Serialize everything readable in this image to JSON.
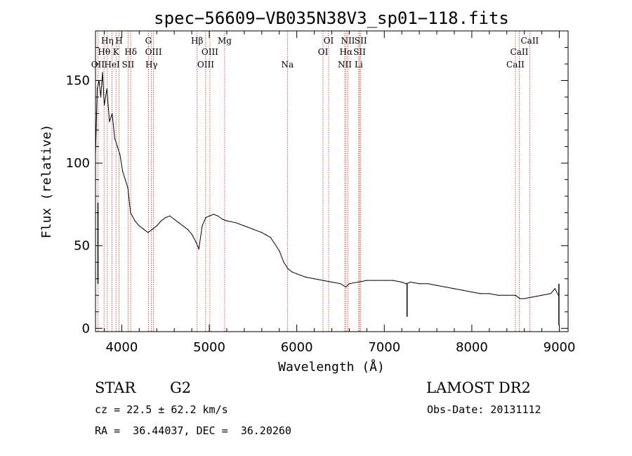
{
  "chart_data": {
    "type": "line",
    "title": "spec−56609−VB035N38V3_sp01−118.fits",
    "xlabel": "Wavelength (Å)",
    "ylabel": "Flux (relative)",
    "xlim": [
      3700,
      9100
    ],
    "ylim": [
      -2,
      180
    ],
    "xticks": [
      4000,
      5000,
      6000,
      7000,
      8000,
      9000
    ],
    "yticks": [
      0,
      50,
      100,
      150
    ],
    "grid": false,
    "series": [
      {
        "x": [
          3700,
          3720,
          3740,
          3760,
          3780,
          3800,
          3830,
          3860,
          3890,
          3920,
          3950,
          3980,
          4010,
          4040,
          4070,
          4100,
          4150,
          4200,
          4250,
          4300,
          4350,
          4400,
          4450,
          4500,
          4550,
          4600,
          4650,
          4700,
          4750,
          4800,
          4850,
          4880,
          4920,
          4960,
          5000,
          5050,
          5100,
          5150,
          5200,
          5300,
          5400,
          5500,
          5600,
          5700,
          5800,
          5850,
          5900,
          5950,
          6000,
          6100,
          6200,
          6300,
          6400,
          6500,
          6560,
          6600,
          6700,
          6800,
          6900,
          7000,
          7100,
          7200,
          7250,
          7300,
          7400,
          7500,
          7600,
          7700,
          7800,
          7900,
          8000,
          8100,
          8200,
          8300,
          8400,
          8500,
          8550,
          8600,
          8700,
          8800,
          8900,
          8950,
          8990
        ],
        "y": [
          105,
          145,
          150,
          140,
          155,
          135,
          145,
          125,
          130,
          115,
          110,
          105,
          95,
          90,
          85,
          70,
          65,
          62,
          60,
          58,
          60,
          62,
          65,
          67,
          68,
          66,
          64,
          62,
          60,
          57,
          52,
          48,
          62,
          67,
          68,
          69,
          68,
          66,
          65,
          64,
          62,
          60,
          58,
          55,
          47,
          40,
          36,
          34,
          33,
          31,
          30,
          29,
          28,
          27,
          25,
          27,
          28,
          29,
          29,
          29,
          29,
          28,
          27,
          28,
          27,
          27,
          26,
          25,
          24,
          23,
          22,
          21,
          21,
          20,
          20,
          20,
          18,
          18,
          19,
          20,
          21,
          24,
          20
        ]
      }
    ],
    "spikes": [
      {
        "x": 7260,
        "y": 7
      },
      {
        "x": 3728,
        "y": 76
      },
      {
        "x": 8995,
        "y": 2
      }
    ],
    "lines": [
      {
        "label": "OII",
        "x": 3727,
        "row": 3
      },
      {
        "label": "Hθ",
        "x": 3798,
        "row": 2
      },
      {
        "label": "Hη",
        "x": 3835,
        "row": 1
      },
      {
        "label": "HeI",
        "x": 3889,
        "row": 3
      },
      {
        "label": "K",
        "x": 3934,
        "row": 2
      },
      {
        "label": "H",
        "x": 3969,
        "row": 1
      },
      {
        "label": "SII",
        "x": 4072,
        "row": 3
      },
      {
        "label": "Hδ",
        "x": 4102,
        "row": 2
      },
      {
        "label": "G",
        "x": 4305,
        "row": 1
      },
      {
        "label": "Hγ",
        "x": 4340,
        "row": 3
      },
      {
        "label": "OIII",
        "x": 4363,
        "row": 2
      },
      {
        "label": "Hβ",
        "x": 4861,
        "row": 1
      },
      {
        "label": "OIII",
        "x": 4959,
        "row": 3
      },
      {
        "label": "OIII",
        "x": 5007,
        "row": 2
      },
      {
        "label": "Mg",
        "x": 5176,
        "row": 1
      },
      {
        "label": "Na",
        "x": 5893,
        "row": 3
      },
      {
        "label": "OI",
        "x": 6300,
        "row": 2
      },
      {
        "label": "OI",
        "x": 6364,
        "row": 1
      },
      {
        "label": "NII",
        "x": 6548,
        "row": 3
      },
      {
        "label": "Hα",
        "x": 6563,
        "row": 2
      },
      {
        "label": "NII",
        "x": 6584,
        "row": 1
      },
      {
        "label": "Li",
        "x": 6708,
        "row": 3
      },
      {
        "label": "SII",
        "x": 6717,
        "row": 2
      },
      {
        "label": "SII",
        "x": 6731,
        "row": 1
      },
      {
        "label": "CaII",
        "x": 8498,
        "row": 3
      },
      {
        "label": "CaII",
        "x": 8542,
        "row": 2
      },
      {
        "label": "CaII",
        "x": 8662,
        "row": 1
      }
    ],
    "colors": {
      "spectrum": "#000000",
      "lines": "#c0392b"
    }
  },
  "info": {
    "object_class": "STAR",
    "subclass": "G2",
    "survey": "LAMOST DR2",
    "cz": "cz = 22.5 ± 62.2 km/s",
    "obs_date": "Obs-Date: 20131112",
    "coords": "RA =  36.44037, DEC =  36.20260"
  }
}
